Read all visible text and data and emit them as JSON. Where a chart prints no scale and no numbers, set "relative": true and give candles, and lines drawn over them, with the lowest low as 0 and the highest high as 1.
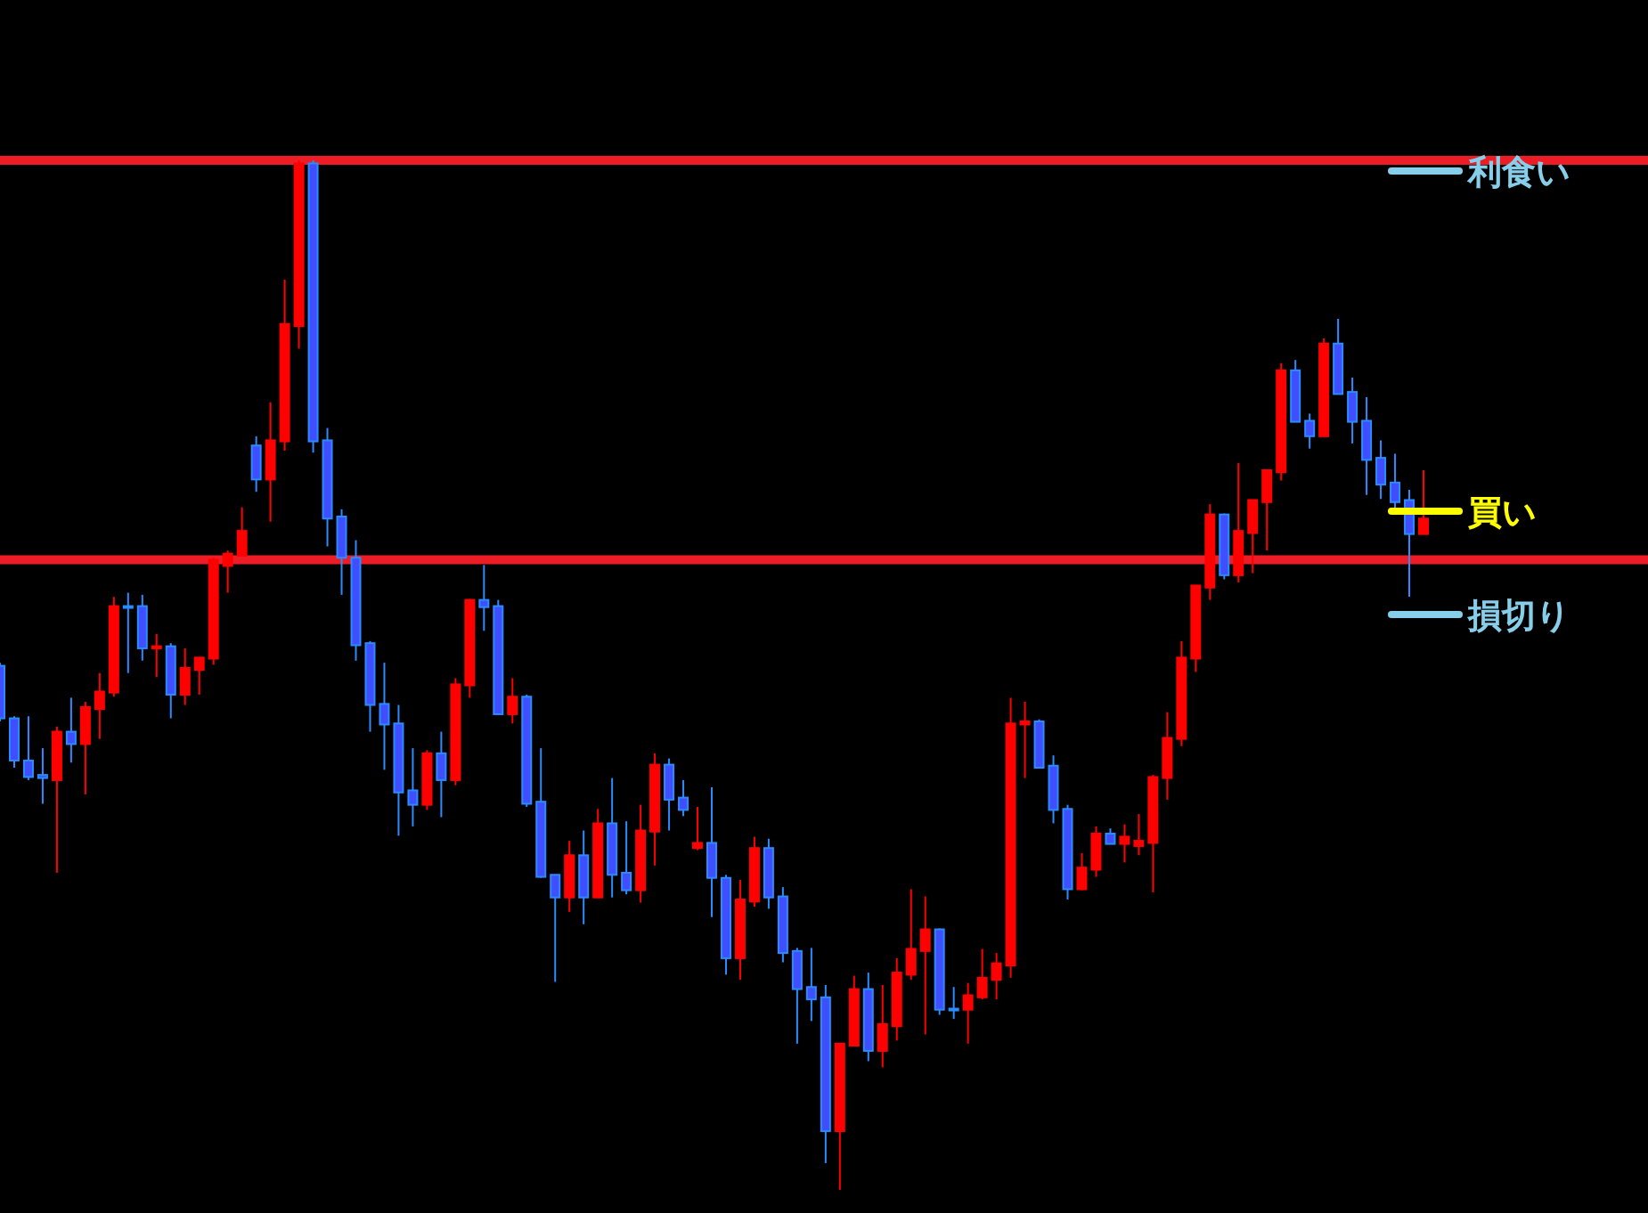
{
  "chart_data": {
    "type": "candlestick",
    "relative": true,
    "categories": [
      null,
      null,
      null,
      null,
      null,
      null,
      null,
      null,
      null,
      null,
      null,
      null,
      null,
      null,
      null,
      null,
      null,
      null,
      null,
      null,
      null,
      null,
      null,
      null,
      null,
      null,
      null,
      null,
      null,
      null,
      null,
      null,
      null,
      null,
      null,
      null,
      null,
      null,
      null,
      null,
      null,
      null,
      null,
      null,
      null,
      null,
      null,
      null,
      null,
      null,
      null,
      null,
      null,
      null,
      null,
      null,
      null,
      null,
      null,
      null,
      null,
      null,
      null,
      null,
      null,
      null,
      null,
      null,
      null,
      null,
      null,
      null,
      null,
      null,
      null,
      null,
      null,
      null,
      null,
      null,
      null,
      null,
      null,
      null,
      null,
      null,
      null,
      null,
      null,
      null,
      null,
      null,
      null,
      null,
      null,
      null,
      null,
      null,
      null,
      null,
      null
    ],
    "ohlc": [
      [
        0.509,
        0.512,
        0.455,
        0.458
      ],
      [
        0.458,
        0.46,
        0.41,
        0.417
      ],
      [
        0.417,
        0.46,
        0.398,
        0.401
      ],
      [
        0.403,
        0.429,
        0.375,
        0.4
      ],
      [
        0.398,
        0.45,
        0.308,
        0.445
      ],
      [
        0.445,
        0.478,
        0.415,
        0.433
      ],
      [
        0.433,
        0.474,
        0.384,
        0.469
      ],
      [
        0.467,
        0.502,
        0.438,
        0.484
      ],
      [
        0.483,
        0.576,
        0.479,
        0.567
      ],
      [
        0.567,
        0.58,
        0.502,
        0.566
      ],
      [
        0.567,
        0.578,
        0.514,
        0.526
      ],
      [
        0.526,
        0.54,
        0.498,
        0.528
      ],
      [
        0.528,
        0.531,
        0.458,
        0.481
      ],
      [
        0.481,
        0.526,
        0.471,
        0.507
      ],
      [
        0.505,
        0.517,
        0.481,
        0.517
      ],
      [
        0.516,
        0.614,
        0.51,
        0.612
      ],
      [
        0.606,
        0.621,
        0.58,
        0.618
      ],
      [
        0.616,
        0.663,
        0.616,
        0.64
      ],
      [
        0.723,
        0.732,
        0.678,
        0.69
      ],
      [
        0.69,
        0.765,
        0.649,
        0.728
      ],
      [
        0.727,
        0.884,
        0.718,
        0.841
      ],
      [
        0.839,
        1,
        0.817,
        0.997
      ],
      [
        0.997,
        1,
        0.716,
        0.727
      ],
      [
        0.728,
        0.74,
        0.625,
        0.652
      ],
      [
        0.654,
        0.661,
        0.578,
        0.614
      ],
      [
        0.614,
        0.631,
        0.514,
        0.529
      ],
      [
        0.531,
        0.533,
        0.445,
        0.471
      ],
      [
        0.472,
        0.512,
        0.408,
        0.452
      ],
      [
        0.453,
        0.471,
        0.344,
        0.386
      ],
      [
        0.388,
        0.429,
        0.353,
        0.374
      ],
      [
        0.374,
        0.427,
        0.369,
        0.424
      ],
      [
        0.424,
        0.445,
        0.362,
        0.398
      ],
      [
        0.398,
        0.497,
        0.393,
        0.491
      ],
      [
        0.49,
        0.574,
        0.478,
        0.573
      ],
      [
        0.573,
        0.607,
        0.543,
        0.566
      ],
      [
        0.567,
        0.573,
        0.462,
        0.462
      ],
      [
        0.462,
        0.497,
        0.453,
        0.479
      ],
      [
        0.479,
        0.481,
        0.372,
        0.375
      ],
      [
        0.377,
        0.429,
        0.303,
        0.304
      ],
      [
        0.306,
        0.306,
        0.202,
        0.284
      ],
      [
        0.284,
        0.339,
        0.27,
        0.325
      ],
      [
        0.325,
        0.349,
        0.258,
        0.284
      ],
      [
        0.284,
        0.37,
        0.284,
        0.356
      ],
      [
        0.356,
        0.4,
        0.284,
        0.306
      ],
      [
        0.308,
        0.358,
        0.287,
        0.291
      ],
      [
        0.291,
        0.374,
        0.279,
        0.349
      ],
      [
        0.348,
        0.424,
        0.315,
        0.413
      ],
      [
        0.413,
        0.419,
        0.349,
        0.379
      ],
      [
        0.381,
        0.398,
        0.363,
        0.369
      ],
      [
        0.332,
        0.372,
        0.33,
        0.337
      ],
      [
        0.337,
        0.391,
        0.265,
        0.303
      ],
      [
        0.303,
        0.306,
        0.209,
        0.225
      ],
      [
        0.225,
        0.301,
        0.204,
        0.282
      ],
      [
        0.28,
        0.343,
        0.275,
        0.332
      ],
      [
        0.332,
        0.341,
        0.273,
        0.284
      ],
      [
        0.285,
        0.294,
        0.221,
        0.23
      ],
      [
        0.232,
        0.235,
        0.142,
        0.195
      ],
      [
        0.197,
        0.235,
        0.164,
        0.185
      ],
      [
        0.187,
        0.199,
        0.026,
        0.057
      ],
      [
        0.057,
        0.142,
        0,
        0.142
      ],
      [
        0.14,
        0.208,
        0.14,
        0.195
      ],
      [
        0.195,
        0.211,
        0.125,
        0.135
      ],
      [
        0.135,
        0.199,
        0.119,
        0.161
      ],
      [
        0.159,
        0.225,
        0.145,
        0.211
      ],
      [
        0.209,
        0.292,
        0.204,
        0.234
      ],
      [
        0.232,
        0.285,
        0.151,
        0.253
      ],
      [
        0.253,
        0.254,
        0.17,
        0.175
      ],
      [
        0.176,
        0.197,
        0.166,
        0.175
      ],
      [
        0.175,
        0.201,
        0.142,
        0.189
      ],
      [
        0.187,
        0.234,
        0.185,
        0.206
      ],
      [
        0.204,
        0.23,
        0.185,
        0.22
      ],
      [
        0.218,
        0.478,
        0.206,
        0.453
      ],
      [
        0.452,
        0.474,
        0.4,
        0.455
      ],
      [
        0.455,
        0.457,
        0.41,
        0.41
      ],
      [
        0.412,
        0.422,
        0.356,
        0.369
      ],
      [
        0.37,
        0.374,
        0.282,
        0.292
      ],
      [
        0.292,
        0.327,
        0.291,
        0.313
      ],
      [
        0.311,
        0.353,
        0.304,
        0.346
      ],
      [
        0.346,
        0.351,
        0.336,
        0.336
      ],
      [
        0.336,
        0.355,
        0.318,
        0.343
      ],
      [
        0.334,
        0.365,
        0.325,
        0.339
      ],
      [
        0.337,
        0.403,
        0.289,
        0.401
      ],
      [
        0.4,
        0.464,
        0.379,
        0.439
      ],
      [
        0.438,
        0.533,
        0.431,
        0.517
      ],
      [
        0.516,
        0.587,
        0.503,
        0.587
      ],
      [
        0.585,
        0.666,
        0.573,
        0.656
      ],
      [
        0.656,
        0.657,
        0.593,
        0.597
      ],
      [
        0.597,
        0.706,
        0.59,
        0.64
      ],
      [
        0.638,
        0.67,
        0.599,
        0.67
      ],
      [
        0.668,
        0.699,
        0.621,
        0.699
      ],
      [
        0.697,
        0.803,
        0.689,
        0.796
      ],
      [
        0.796,
        0.806,
        0.746,
        0.746
      ],
      [
        0.747,
        0.754,
        0.72,
        0.732
      ],
      [
        0.732,
        0.827,
        0.732,
        0.822
      ],
      [
        0.822,
        0.846,
        0.773,
        0.773
      ],
      [
        0.775,
        0.789,
        0.725,
        0.746
      ],
      [
        0.747,
        0.77,
        0.675,
        0.709
      ],
      [
        0.711,
        0.728,
        0.671,
        0.685
      ],
      [
        0.687,
        0.715,
        0.661,
        0.668
      ],
      [
        0.67,
        0.68,
        0.576,
        0.637
      ],
      [
        0.637,
        0.699,
        0.637,
        0.652
      ]
    ],
    "ref_lines": [
      {
        "axis": "y",
        "value": 1,
        "color": "#ee1c25"
      },
      {
        "axis": "y",
        "value": 0.612,
        "color": "#ee1c25"
      }
    ],
    "annotations": [
      "利食い",
      "買い",
      "損切り"
    ]
  }
}
